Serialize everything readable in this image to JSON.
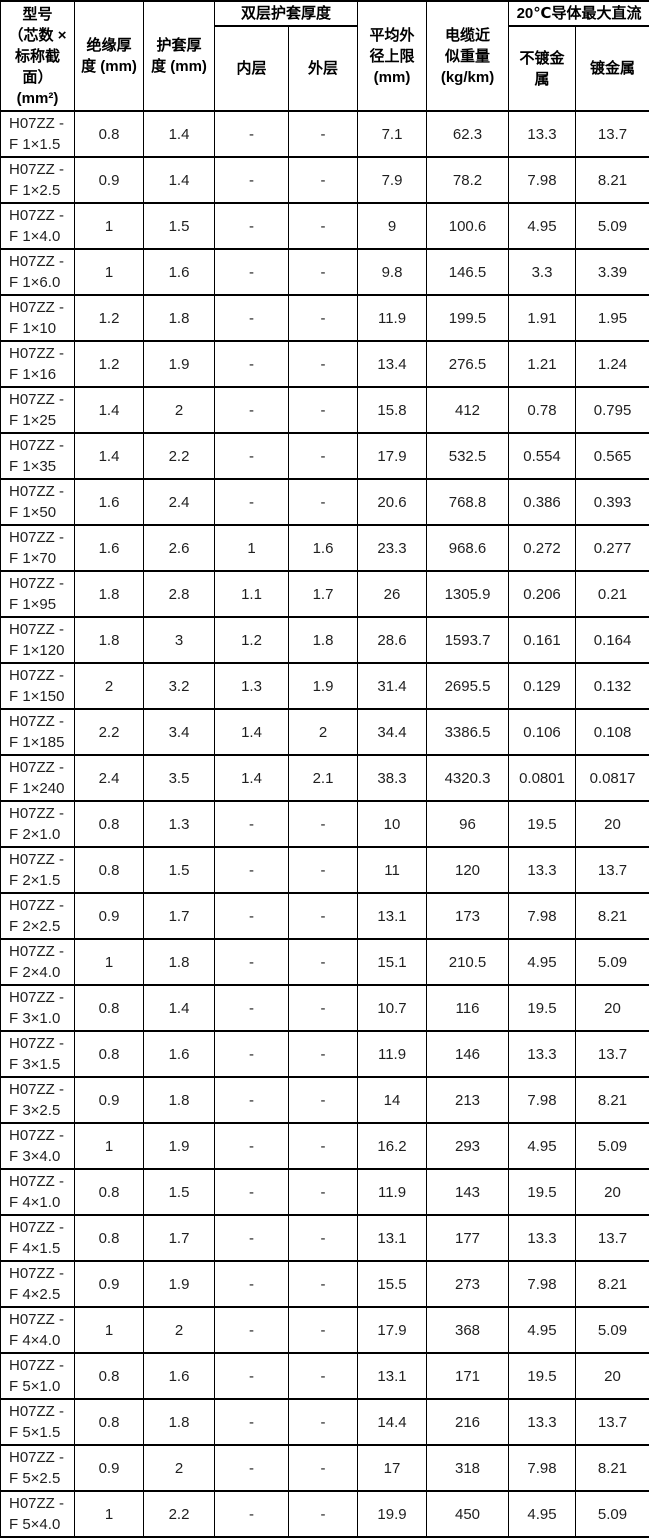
{
  "colors": {
    "background": "#ffffff",
    "border": "#000000",
    "header_text": "#000000",
    "cell_text": "#1f1f1f"
  },
  "table": {
    "header": {
      "model": "型号\n（芯数 ×\n标称截\n面）\n(mm²)",
      "insulation": "绝缘厚\n度 (mm)",
      "sheath": "护套厚\n度 (mm)",
      "double_sheath": "双层护套厚度",
      "inner_layer": "内层",
      "outer_layer": "外层",
      "outer_diameter": "平均外\n径上限\n(mm)",
      "weight": "电缆近\n似重量\n(kg/km)",
      "dc_max": "20℃导体最大直流",
      "unplated": "不镀金\n属",
      "plated": "镀金属"
    },
    "rows": [
      [
        "H07ZZ -\nF 1×1.5",
        "0.8",
        "1.4",
        "-",
        "-",
        "7.1",
        "62.3",
        "13.3",
        "13.7"
      ],
      [
        "H07ZZ -\nF 1×2.5",
        "0.9",
        "1.4",
        "-",
        "-",
        "7.9",
        "78.2",
        "7.98",
        "8.21"
      ],
      [
        "H07ZZ -\nF 1×4.0",
        "1",
        "1.5",
        "-",
        "-",
        "9",
        "100.6",
        "4.95",
        "5.09"
      ],
      [
        "H07ZZ -\nF 1×6.0",
        "1",
        "1.6",
        "-",
        "-",
        "9.8",
        "146.5",
        "3.3",
        "3.39"
      ],
      [
        "H07ZZ -\nF 1×10",
        "1.2",
        "1.8",
        "-",
        "-",
        "11.9",
        "199.5",
        "1.91",
        "1.95"
      ],
      [
        "H07ZZ -\nF 1×16",
        "1.2",
        "1.9",
        "-",
        "-",
        "13.4",
        "276.5",
        "1.21",
        "1.24"
      ],
      [
        "H07ZZ -\nF 1×25",
        "1.4",
        "2",
        "-",
        "-",
        "15.8",
        "412",
        "0.78",
        "0.795"
      ],
      [
        "H07ZZ -\nF 1×35",
        "1.4",
        "2.2",
        "-",
        "-",
        "17.9",
        "532.5",
        "0.554",
        "0.565"
      ],
      [
        "H07ZZ -\nF 1×50",
        "1.6",
        "2.4",
        "-",
        "-",
        "20.6",
        "768.8",
        "0.386",
        "0.393"
      ],
      [
        "H07ZZ -\nF 1×70",
        "1.6",
        "2.6",
        "1",
        "1.6",
        "23.3",
        "968.6",
        "0.272",
        "0.277"
      ],
      [
        "H07ZZ -\nF 1×95",
        "1.8",
        "2.8",
        "1.1",
        "1.7",
        "26",
        "1305.9",
        "0.206",
        "0.21"
      ],
      [
        "H07ZZ -\nF 1×120",
        "1.8",
        "3",
        "1.2",
        "1.8",
        "28.6",
        "1593.7",
        "0.161",
        "0.164"
      ],
      [
        "H07ZZ -\nF 1×150",
        "2",
        "3.2",
        "1.3",
        "1.9",
        "31.4",
        "2695.5",
        "0.129",
        "0.132"
      ],
      [
        "H07ZZ -\nF 1×185",
        "2.2",
        "3.4",
        "1.4",
        "2",
        "34.4",
        "3386.5",
        "0.106",
        "0.108"
      ],
      [
        "H07ZZ -\nF 1×240",
        "2.4",
        "3.5",
        "1.4",
        "2.1",
        "38.3",
        "4320.3",
        "0.0801",
        "0.0817"
      ],
      [
        "H07ZZ -\nF 2×1.0",
        "0.8",
        "1.3",
        "-",
        "-",
        "10",
        "96",
        "19.5",
        "20"
      ],
      [
        "H07ZZ -\nF 2×1.5",
        "0.8",
        "1.5",
        "-",
        "-",
        "11",
        "120",
        "13.3",
        "13.7"
      ],
      [
        "H07ZZ -\nF 2×2.5",
        "0.9",
        "1.7",
        "-",
        "-",
        "13.1",
        "173",
        "7.98",
        "8.21"
      ],
      [
        "H07ZZ -\nF 2×4.0",
        "1",
        "1.8",
        "-",
        "-",
        "15.1",
        "210.5",
        "4.95",
        "5.09"
      ],
      [
        "H07ZZ -\nF 3×1.0",
        "0.8",
        "1.4",
        "-",
        "-",
        "10.7",
        "116",
        "19.5",
        "20"
      ],
      [
        "H07ZZ -\nF 3×1.5",
        "0.8",
        "1.6",
        "-",
        "-",
        "11.9",
        "146",
        "13.3",
        "13.7"
      ],
      [
        "H07ZZ -\nF 3×2.5",
        "0.9",
        "1.8",
        "-",
        "-",
        "14",
        "213",
        "7.98",
        "8.21"
      ],
      [
        "H07ZZ -\nF 3×4.0",
        "1",
        "1.9",
        "-",
        "-",
        "16.2",
        "293",
        "4.95",
        "5.09"
      ],
      [
        "H07ZZ -\nF 4×1.0",
        "0.8",
        "1.5",
        "-",
        "-",
        "11.9",
        "143",
        "19.5",
        "20"
      ],
      [
        "H07ZZ -\nF 4×1.5",
        "0.8",
        "1.7",
        "-",
        "-",
        "13.1",
        "177",
        "13.3",
        "13.7"
      ],
      [
        "H07ZZ -\nF 4×2.5",
        "0.9",
        "1.9",
        "-",
        "-",
        "15.5",
        "273",
        "7.98",
        "8.21"
      ],
      [
        "H07ZZ -\nF 4×4.0",
        "1",
        "2",
        "-",
        "-",
        "17.9",
        "368",
        "4.95",
        "5.09"
      ],
      [
        "H07ZZ -\nF 5×1.0",
        "0.8",
        "1.6",
        "-",
        "-",
        "13.1",
        "171",
        "19.5",
        "20"
      ],
      [
        "H07ZZ -\nF 5×1.5",
        "0.8",
        "1.8",
        "-",
        "-",
        "14.4",
        "216",
        "13.3",
        "13.7"
      ],
      [
        "H07ZZ -\nF 5×2.5",
        "0.9",
        "2",
        "-",
        "-",
        "17",
        "318",
        "7.98",
        "8.21"
      ],
      [
        "H07ZZ -\nF 5×4.0",
        "1",
        "2.2",
        "-",
        "-",
        "19.9",
        "450",
        "4.95",
        "5.09"
      ]
    ]
  }
}
